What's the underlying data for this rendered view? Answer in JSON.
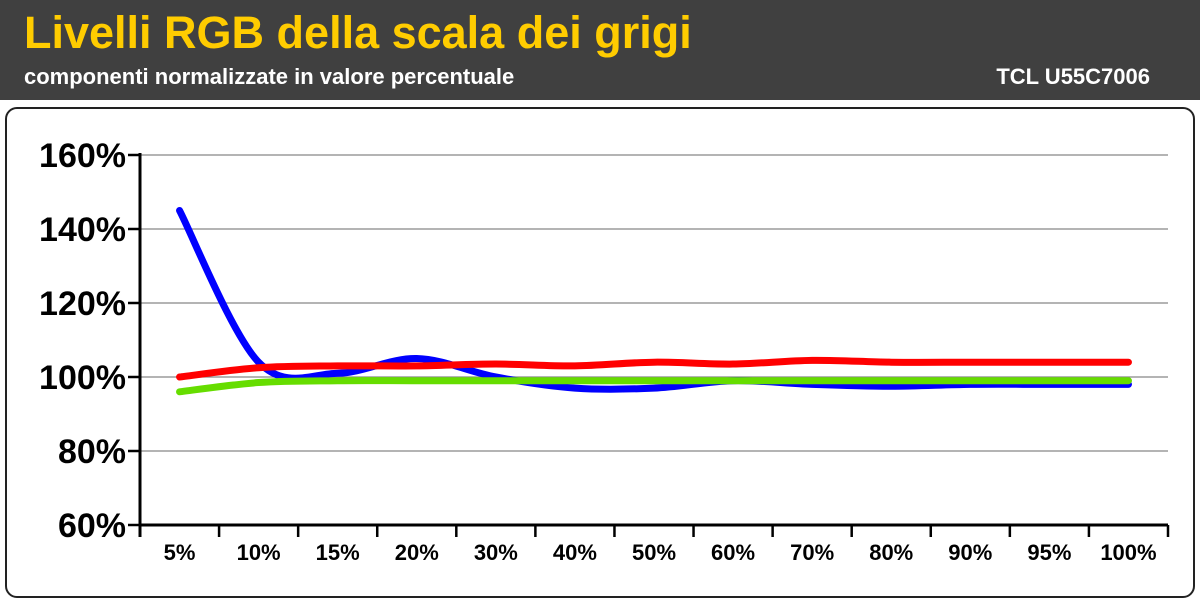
{
  "header": {
    "title": "Livelli RGB della scala dei grigi",
    "subtitle": "componenti normalizzate in valore percentuale",
    "model": "TCL U55C7006"
  },
  "chart_data": {
    "type": "line",
    "title": "Livelli RGB della scala dei grigi",
    "subtitle": "componenti normalizzate in valore percentuale",
    "xlabel": "",
    "ylabel": "",
    "categories": [
      "5%",
      "10%",
      "15%",
      "20%",
      "30%",
      "40%",
      "50%",
      "60%",
      "70%",
      "80%",
      "90%",
      "95%",
      "100%"
    ],
    "y_ticks": [
      "160%",
      "140%",
      "120%",
      "100%",
      "80%",
      "60%"
    ],
    "ylim": [
      60,
      160
    ],
    "grid": true,
    "series": [
      {
        "color": "#0000ff",
        "values": [
          145,
          104,
          101,
          105,
          100,
          97,
          97,
          99,
          98,
          97.5,
          98,
          98,
          98
        ]
      },
      {
        "color": "#66dd00",
        "values": [
          96,
          98.5,
          99,
          99,
          99,
          99,
          99,
          99,
          99,
          99,
          99,
          99,
          99
        ]
      },
      {
        "color": "#ff0000",
        "values": [
          100,
          102.5,
          103,
          103,
          103.5,
          103,
          104,
          103.5,
          104.5,
          104,
          104,
          104,
          104
        ]
      }
    ]
  }
}
